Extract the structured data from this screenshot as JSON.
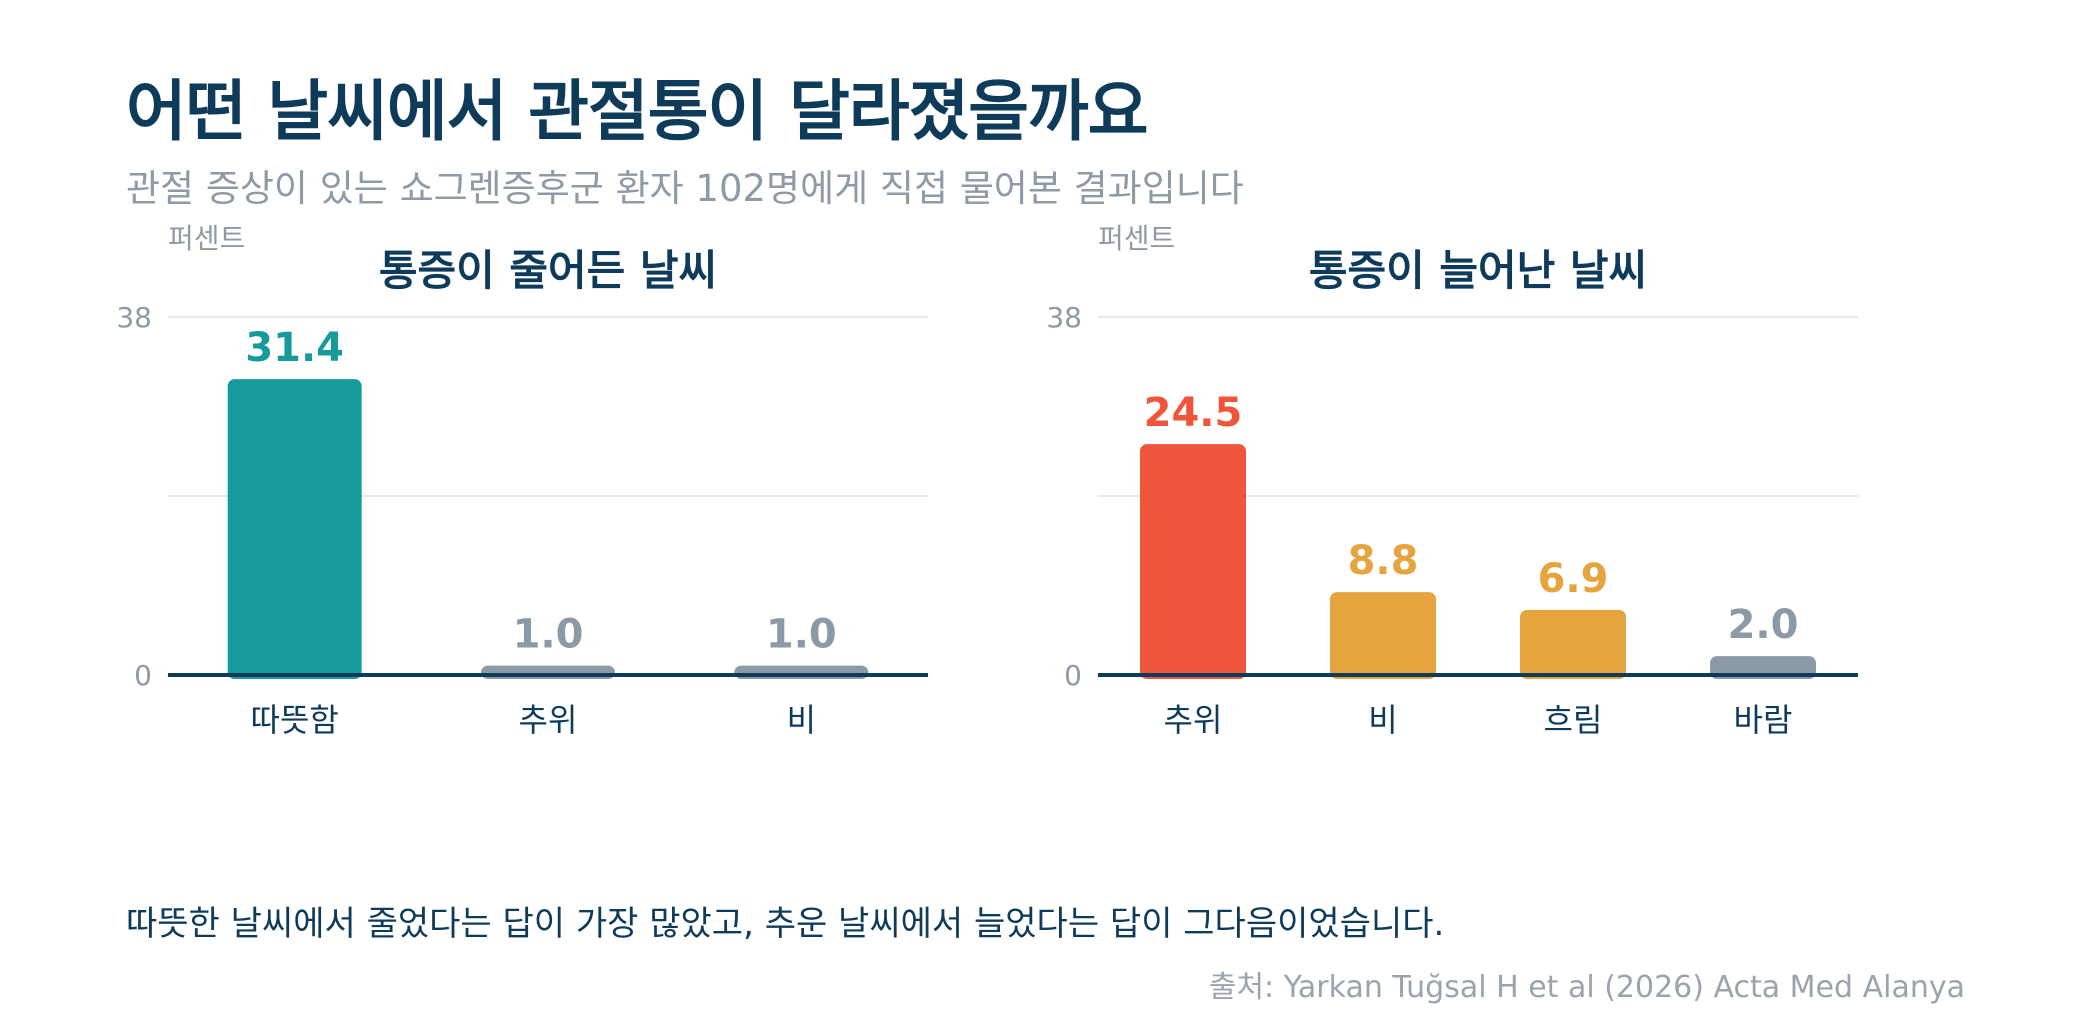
{
  "title": "어떤 날씨에서 관절통이 달라졌을까요",
  "subtitle": "관절 증상이 있는 쇼그렌증후군 환자 102명에게 직접 물어본 결과입니다",
  "footnote": "따뜻한 날씨에서 줄었다는 답이 가장 많았고, 추운 날씨에서 늘었다는 답이 그다음이었습니다.",
  "source": "출처: Yarkan Tuğsal H et al (2026) Acta Med Alanya",
  "colors": {
    "title": "#0f3b5b",
    "muted": "#8f9aa7",
    "grid": "#e6e9ec",
    "baseline": "#0f3b5b",
    "teal": "#179b9a",
    "red": "#ee553b",
    "amber": "#e5a43d",
    "gray": "#8c99a6"
  },
  "chart_data": [
    {
      "type": "bar",
      "title": "통증이 줄어든 날씨",
      "ylabel": "퍼센트",
      "ylim": [
        0,
        38
      ],
      "yticks": [
        0,
        38
      ],
      "grid": true,
      "categories": [
        "따뜻함",
        "추위",
        "비"
      ],
      "values": [
        31.4,
        1.0,
        1.0
      ],
      "value_labels": [
        "31.4",
        "1.0",
        "1.0"
      ],
      "bar_colors": [
        "#179b9a",
        "#8c99a6",
        "#8c99a6"
      ]
    },
    {
      "type": "bar",
      "title": "통증이 늘어난 날씨",
      "ylabel": "퍼센트",
      "ylim": [
        0,
        38
      ],
      "yticks": [
        0,
        38
      ],
      "grid": true,
      "categories": [
        "추위",
        "비",
        "흐림",
        "바람"
      ],
      "values": [
        24.5,
        8.8,
        6.9,
        2.0
      ],
      "value_labels": [
        "24.5",
        "8.8",
        "6.9",
        "2.0"
      ],
      "bar_colors": [
        "#ee553b",
        "#e5a43d",
        "#e5a43d",
        "#8c99a6"
      ]
    }
  ]
}
